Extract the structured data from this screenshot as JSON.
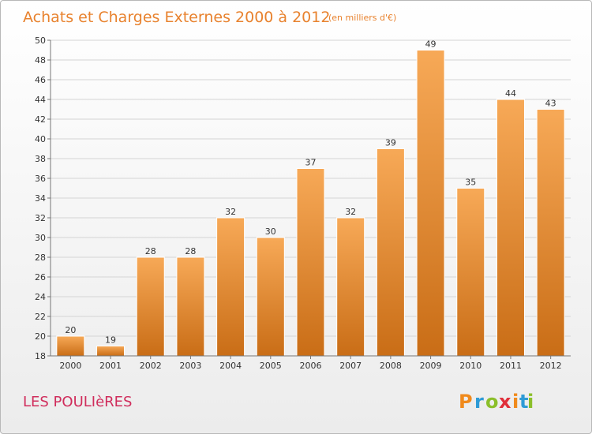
{
  "chart_data": {
    "type": "bar",
    "title": "Achats et Charges Externes 2000 à 2012",
    "subtitle": "(en milliers d'€)",
    "categories": [
      "2000",
      "2001",
      "2002",
      "2003",
      "2004",
      "2005",
      "2006",
      "2007",
      "2008",
      "2009",
      "2010",
      "2011",
      "2012"
    ],
    "values": [
      20,
      19,
      28,
      28,
      32,
      30,
      37,
      32,
      39,
      49,
      35,
      44,
      43
    ],
    "ylim": [
      18,
      50
    ],
    "yticks": [
      18,
      20,
      22,
      24,
      26,
      28,
      30,
      32,
      34,
      36,
      38,
      40,
      42,
      44,
      46,
      48,
      50
    ],
    "grid": true,
    "bar_color_light": "#f7a957",
    "bar_color_dark": "#c96d16",
    "data_labels": true
  },
  "place_name": "LES POULIèRES",
  "logo": {
    "letters": [
      "P",
      "r",
      "o",
      "x",
      "i",
      "t",
      "i"
    ],
    "colors": [
      "#f08a1c",
      "#2e9bd6",
      "#8bbf2a",
      "#e02f3a",
      "#f08a1c",
      "#2e9bd6",
      "#8bbf2a"
    ]
  }
}
